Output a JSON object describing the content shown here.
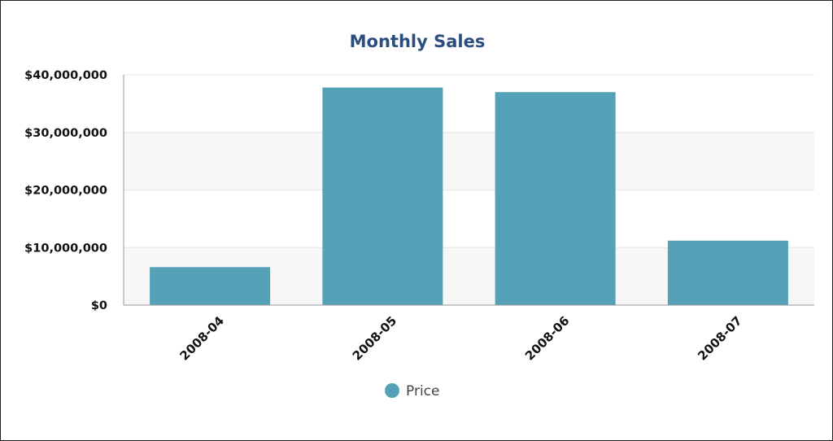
{
  "chart_data": {
    "type": "bar",
    "title": "Monthly Sales",
    "xlabel": "",
    "ylabel": "",
    "categories": [
      "2008-04",
      "2008-05",
      "2008-06",
      "2008-07"
    ],
    "series": [
      {
        "name": "Price",
        "values": [
          6600000,
          37800000,
          37000000,
          11200000
        ]
      }
    ],
    "ylim": [
      0,
      40000000
    ],
    "y_ticks": [
      0,
      10000000,
      20000000,
      30000000,
      40000000
    ],
    "y_tick_labels": [
      "$0",
      "$10,000,000",
      "$20,000,000",
      "$30,000,000",
      "$40,000,000"
    ],
    "grid": true,
    "legend_position": "bottom-center"
  },
  "colors": {
    "bar": "#55a1b8",
    "title": "#2b4d80",
    "band": "#f7f7f7",
    "grid": "#e6e6e6",
    "axis": "#999999"
  }
}
